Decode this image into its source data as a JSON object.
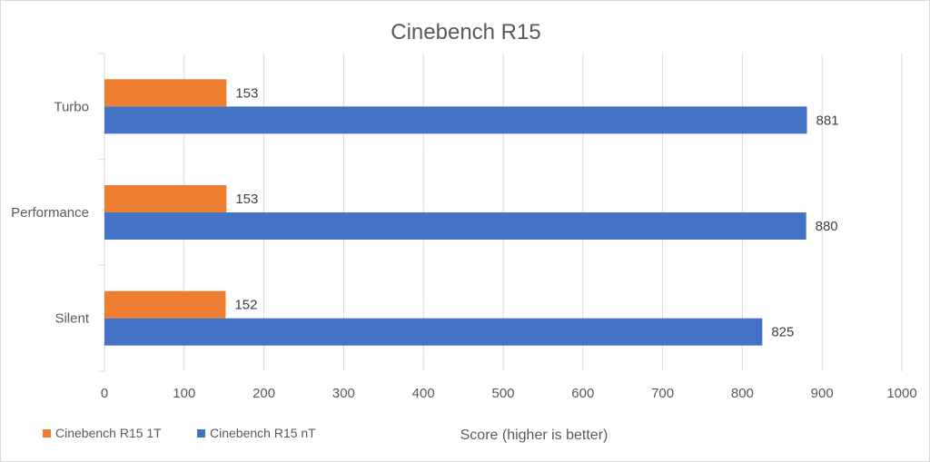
{
  "chart_data": {
    "type": "bar",
    "orientation": "horizontal",
    "title": "Cinebench R15",
    "xlabel": "Score (higher is better)",
    "ylabel": "",
    "xlim": [
      0,
      1000
    ],
    "x_ticks": [
      0,
      100,
      200,
      300,
      400,
      500,
      600,
      700,
      800,
      900,
      1000
    ],
    "categories": [
      "Turbo",
      "Performance",
      "Silent"
    ],
    "series": [
      {
        "name": "Cinebench R15 1T",
        "color": "#ed7d31",
        "values": [
          153,
          153,
          152
        ]
      },
      {
        "name": "Cinebench R15 nT",
        "color": "#4472c4",
        "values": [
          881,
          880,
          825
        ]
      }
    ],
    "grid": "vertical",
    "legend": "bottom-left",
    "data_labels": true
  }
}
